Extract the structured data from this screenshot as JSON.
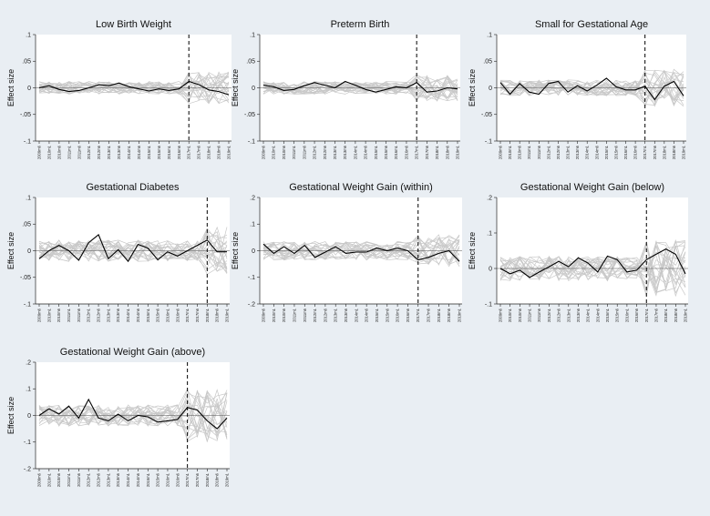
{
  "figure": {
    "background": "#e9eef3",
    "plot_background": "#ffffff",
    "placebo_line_color": "#c8c8c8",
    "main_line_color": "#000000",
    "cutoff_line_color": "#000000"
  },
  "chart_data": [
    {
      "type": "line",
      "title": "Low Birth Weight",
      "ylabel": "Effect size",
      "ylim": [
        -0.1,
        0.1
      ],
      "yticks": [
        -0.1,
        -0.05,
        0,
        0.05,
        0.1
      ],
      "ytick_labels": [
        "-.1",
        "-.05",
        "0",
        ".05",
        ".1"
      ],
      "x": [
        "2009m6",
        "2010m1",
        "2010m6",
        "2011m1",
        "2011m6",
        "2012m1",
        "2012m6",
        "2013m1",
        "2013m6",
        "2014m1",
        "2014m6",
        "2015m1",
        "2015m6",
        "2016m1",
        "2016m6",
        "2017m1",
        "2017m6",
        "2018m1",
        "2018m6",
        "2019m1"
      ],
      "xticks_shown": [
        "2009m6",
        "2010m1",
        "2010m6",
        "2011m1",
        "2011m6",
        "2012m1",
        "2012m6",
        "2013m1",
        "2013m6",
        "2014m1",
        "2014m6",
        "2015m1",
        "2015m6",
        "2016m1",
        "2016m6",
        "2017m1",
        "2017m6",
        "2018m1",
        "2018m6",
        "2019m1"
      ],
      "cutoff": "2017m1",
      "grid": false,
      "series": [
        {
          "role": "treated",
          "values": [
            0.0,
            0.004,
            -0.003,
            -0.007,
            -0.005,
            0.0,
            0.006,
            0.004,
            0.009,
            0.002,
            -0.002,
            -0.006,
            -0.002,
            -0.005,
            -0.002,
            0.012,
            0.006,
            -0.004,
            -0.007,
            -0.013
          ]
        }
      ],
      "placebo_range": 0.012,
      "placebo_range_post": 0.03
    },
    {
      "type": "line",
      "title": "Preterm Birth",
      "ylabel": "Effect size",
      "ylim": [
        -0.1,
        0.1
      ],
      "yticks": [
        -0.1,
        -0.05,
        0,
        0.05,
        0.1
      ],
      "ytick_labels": [
        "-.1",
        "-.05",
        "0",
        ".05",
        ".1"
      ],
      "x": [
        "2009m6",
        "2010m1",
        "2010m6",
        "2011m1",
        "2011m6",
        "2012m1",
        "2012m6",
        "2013m1",
        "2013m6",
        "2014m1",
        "2014m6",
        "2015m1",
        "2015m6",
        "2016m1",
        "2016m6",
        "2017m1",
        "2017m6",
        "2018m1",
        "2018m6",
        "2019m1"
      ],
      "xticks_shown": [
        "2009m6",
        "2010m1",
        "2010m6",
        "2011m1",
        "2011m6",
        "2012m1",
        "2012m6",
        "2013m1",
        "2013m6",
        "2014m1",
        "2014m6",
        "2015m1",
        "2015m6",
        "2016m1",
        "2016m6",
        "2017m1",
        "2017m6",
        "2018m1",
        "2018m6",
        "2019m1"
      ],
      "cutoff": "2017m1",
      "grid": false,
      "series": [
        {
          "role": "treated",
          "values": [
            0.005,
            0.002,
            -0.005,
            -0.003,
            0.004,
            0.01,
            0.005,
            0.0,
            0.012,
            0.005,
            -0.003,
            -0.008,
            -0.003,
            0.002,
            0.0,
            0.01,
            -0.008,
            -0.006,
            0.0,
            -0.002
          ]
        }
      ],
      "placebo_range": 0.012,
      "placebo_range_post": 0.025
    },
    {
      "type": "line",
      "title": "Small for Gestational Age",
      "ylabel": "Effect size",
      "ylim": [
        -0.1,
        0.1
      ],
      "yticks": [
        -0.1,
        -0.05,
        0,
        0.05,
        0.1
      ],
      "ytick_labels": [
        "-.1",
        "-.05",
        "0",
        ".05",
        ".1"
      ],
      "x": [
        "2009m6",
        "2010m1",
        "2010m6",
        "2011m1",
        "2011m6",
        "2012m1",
        "2012m6",
        "2013m1",
        "2013m6",
        "2014m1",
        "2014m6",
        "2015m1",
        "2015m6",
        "2016m1",
        "2016m6",
        "2017m1",
        "2017m6",
        "2018m1",
        "2018m6",
        "2019m1"
      ],
      "xticks_shown": [
        "2009m6",
        "2010m1",
        "2010m6",
        "2011m1",
        "2011m6",
        "2012m1",
        "2012m6",
        "2013m1",
        "2013m6",
        "2014m1",
        "2014m6",
        "2015m1",
        "2015m6",
        "2016m1",
        "2016m6",
        "2017m1",
        "2017m6",
        "2018m1",
        "2018m6",
        "2019m1"
      ],
      "cutoff": "2017m1",
      "grid": false,
      "series": [
        {
          "role": "treated",
          "values": [
            0.01,
            -0.012,
            0.008,
            -0.008,
            -0.012,
            0.008,
            0.012,
            -0.008,
            0.004,
            -0.006,
            0.005,
            0.018,
            0.002,
            -0.004,
            -0.004,
            0.003,
            -0.022,
            0.003,
            0.012,
            -0.015
          ]
        }
      ],
      "placebo_range": 0.015,
      "placebo_range_post": 0.035
    },
    {
      "type": "line",
      "title": "Gestational Diabetes",
      "ylabel": "Effect size",
      "ylim": [
        -0.1,
        0.1
      ],
      "yticks": [
        -0.1,
        -0.05,
        0,
        0.05,
        0.1
      ],
      "ytick_labels": [
        "-.1",
        "-.05",
        "0",
        ".05",
        ".1"
      ],
      "x": [
        "2009m6",
        "2010m1",
        "2010m6",
        "2011m1",
        "2011m6",
        "2012m1",
        "2012m6",
        "2013m1",
        "2013m6",
        "2014m1",
        "2014m6",
        "2015m1",
        "2015m6",
        "2016m1",
        "2016m6",
        "2017m1",
        "2017m6",
        "2018m1",
        "2018m6",
        "2019m1"
      ],
      "xticks_shown": [
        "2009m6",
        "2010m1",
        "2010m6",
        "2011m1",
        "2011m6",
        "2012m1",
        "2012m6",
        "2013m1",
        "2013m6",
        "2014m1",
        "2014m6",
        "2015m1",
        "2015m6",
        "2016m1",
        "2016m6",
        "2017m1",
        "2017m6",
        "2018m1",
        "2018m6",
        "2019m1"
      ],
      "cutoff": "2018m1",
      "grid": false,
      "series": [
        {
          "role": "treated",
          "values": [
            -0.015,
            0.0,
            0.01,
            0.0,
            -0.018,
            0.015,
            0.03,
            -0.015,
            0.002,
            -0.02,
            0.012,
            0.005,
            -0.017,
            -0.002,
            -0.01,
            0.0,
            0.01,
            0.02,
            -0.002,
            -0.002
          ]
        }
      ],
      "placebo_range": 0.02,
      "placebo_range_post": 0.045
    },
    {
      "type": "line",
      "title": "Gestational Weight Gain (within)",
      "ylabel": "Effect size",
      "ylim": [
        -0.2,
        0.2
      ],
      "yticks": [
        -0.2,
        -0.1,
        0,
        0.1,
        0.2
      ],
      "ytick_labels": [
        "-.2",
        "-.1",
        "0",
        ".1",
        ".2"
      ],
      "x": [
        "2009m6",
        "2010m1",
        "2010m6",
        "2011m1",
        "2011m6",
        "2012m1",
        "2012m6",
        "2013m1",
        "2013m6",
        "2014m1",
        "2014m6",
        "2015m1",
        "2015m6",
        "2016m1",
        "2016m6",
        "2017m1",
        "2017m6",
        "2018m1",
        "2018m6",
        "2019m1"
      ],
      "xticks_shown": [
        "2009m6",
        "2010m1",
        "2010m6",
        "2011m1",
        "2011m6",
        "2012m1",
        "2012m6",
        "2013m1",
        "2013m6",
        "2014m1",
        "2014m6",
        "2015m1",
        "2015m6",
        "2016m1",
        "2016m6",
        "2017m1",
        "2017m6",
        "2018m1",
        "2018m6",
        "2019m1"
      ],
      "cutoff": "2017m1",
      "grid": false,
      "series": [
        {
          "role": "treated",
          "values": [
            0.025,
            -0.01,
            0.015,
            -0.01,
            0.02,
            -0.025,
            -0.005,
            0.015,
            -0.01,
            -0.005,
            -0.005,
            0.01,
            0.0,
            0.01,
            0.0,
            -0.035,
            -0.025,
            -0.01,
            0.0,
            -0.04
          ]
        }
      ],
      "placebo_range": 0.035,
      "placebo_range_post": 0.06
    },
    {
      "type": "line",
      "title": "Gestational Weight Gain (below)",
      "ylabel": "Effect size",
      "ylim": [
        -0.1,
        0.2
      ],
      "yticks": [
        -0.1,
        0,
        0.1,
        0.2
      ],
      "ytick_labels": [
        "-.1",
        "0",
        ".1",
        ".2"
      ],
      "x": [
        "2009m6",
        "2010m1",
        "2010m6",
        "2011m1",
        "2011m6",
        "2012m1",
        "2012m6",
        "2013m1",
        "2013m6",
        "2014m1",
        "2014m6",
        "2015m1",
        "2015m6",
        "2016m1",
        "2016m6",
        "2017m1",
        "2017m6",
        "2018m1",
        "2018m6",
        "2019m1"
      ],
      "xticks_shown": [
        "2009m6",
        "2010m1",
        "2010m6",
        "2011m1",
        "2011m6",
        "2012m1",
        "2012m6",
        "2013m1",
        "2013m6",
        "2014m1",
        "2014m6",
        "2015m1",
        "2015m6",
        "2016m1",
        "2016m6",
        "2017m1",
        "2017m6",
        "2018m1",
        "2018m6",
        "2019m1"
      ],
      "cutoff": "2017m1",
      "grid": false,
      "series": [
        {
          "role": "treated",
          "values": [
            0.0,
            -0.015,
            -0.005,
            -0.025,
            -0.01,
            0.005,
            0.02,
            0.005,
            0.03,
            0.015,
            -0.01,
            0.035,
            0.025,
            -0.01,
            -0.005,
            0.025,
            0.04,
            0.055,
            0.04,
            -0.015
          ]
        }
      ],
      "placebo_range": 0.035,
      "placebo_range_post": 0.08
    },
    {
      "type": "line",
      "title": "Gestational Weight Gain (above)",
      "ylabel": "Effect size",
      "ylim": [
        -0.2,
        0.2
      ],
      "yticks": [
        -0.2,
        -0.1,
        0,
        0.1,
        0.2
      ],
      "ytick_labels": [
        "-.2",
        "-.1",
        "0",
        ".1",
        ".2"
      ],
      "x": [
        "2009m6",
        "2010m1",
        "2010m6",
        "2011m1",
        "2011m6",
        "2012m1",
        "2012m6",
        "2013m1",
        "2013m6",
        "2014m1",
        "2014m6",
        "2015m1",
        "2015m6",
        "2016m1",
        "2016m6",
        "2017m1",
        "2017m6",
        "2018m1",
        "2018m6",
        "2019m1"
      ],
      "xticks_shown": [
        "2009m6",
        "2010m1",
        "2010m6",
        "2011m1",
        "2011m6",
        "2012m1",
        "2012m6",
        "2013m1",
        "2013m6",
        "2014m1",
        "2014m6",
        "2015m1",
        "2015m6",
        "2016m1",
        "2016m6",
        "2017m1",
        "2017m6",
        "2018m1",
        "2018m6",
        "2019m1"
      ],
      "cutoff": "2017m1",
      "grid": false,
      "series": [
        {
          "role": "treated",
          "values": [
            0.0,
            0.025,
            0.005,
            0.035,
            -0.01,
            0.06,
            -0.01,
            -0.02,
            0.005,
            -0.02,
            0.0,
            -0.005,
            -0.025,
            -0.02,
            -0.015,
            0.03,
            0.02,
            -0.02,
            -0.05,
            -0.01
          ]
        }
      ],
      "placebo_range": 0.04,
      "placebo_range_post": 0.1
    }
  ]
}
